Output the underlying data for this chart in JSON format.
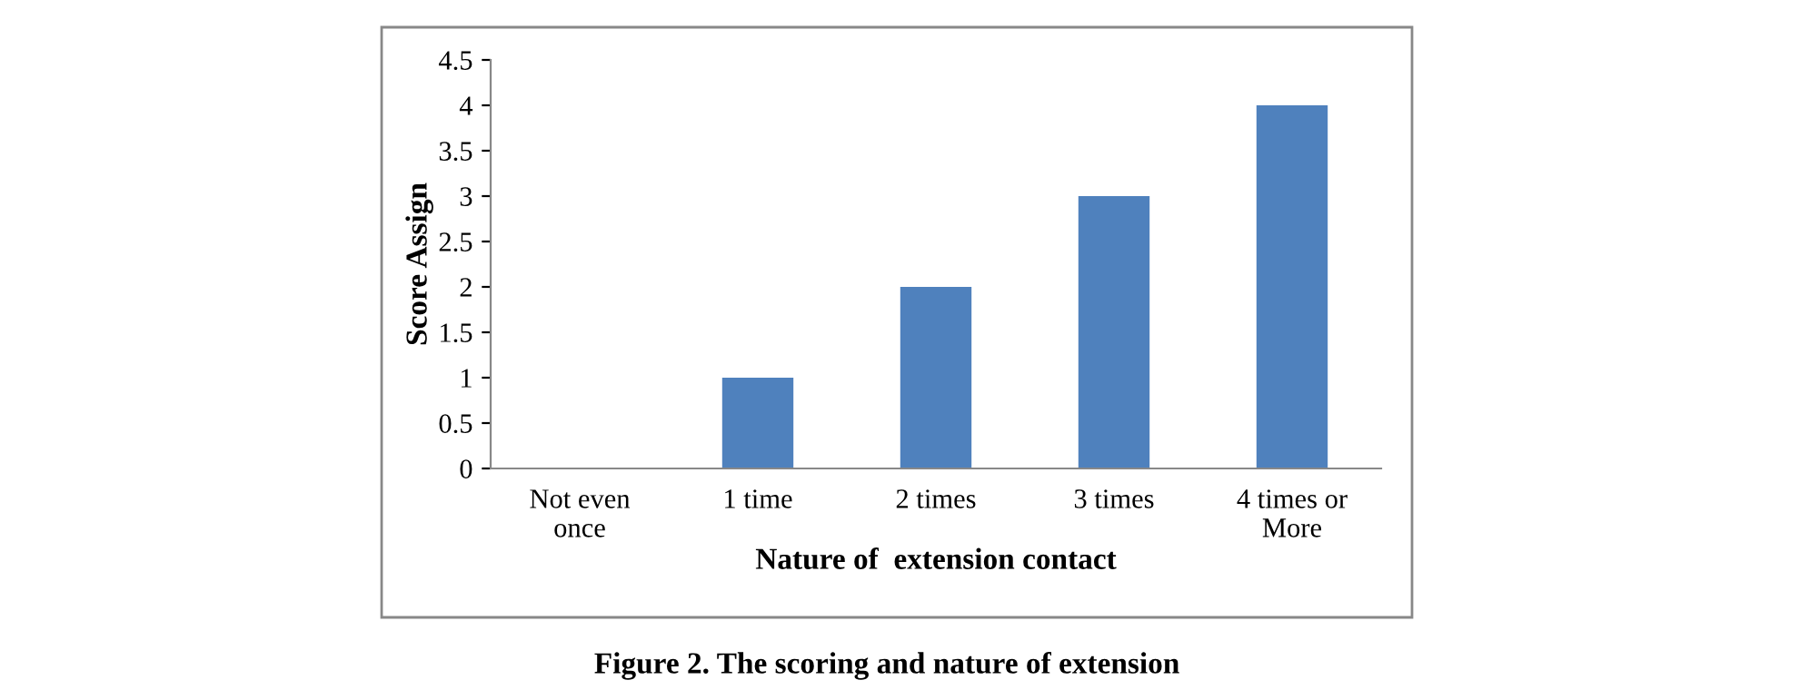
{
  "chart_data": {
    "type": "bar",
    "xlabel": "Nature of  extension contact",
    "ylabel": "Score Assign",
    "categories": [
      "Not even\nonce",
      "1 time",
      "2 times",
      "3 times",
      "4 times or\nMore"
    ],
    "values": [
      0,
      1,
      2,
      3,
      4
    ],
    "color": "#4f81bd",
    "ylim": [
      0,
      4.5
    ],
    "yticks": [
      0,
      0.5,
      1,
      1.5,
      2,
      2.5,
      3,
      3.5,
      4,
      4.5
    ],
    "grid": false,
    "legend": false,
    "annotations": [
      "Figure 2. The scoring and nature of extension"
    ]
  }
}
